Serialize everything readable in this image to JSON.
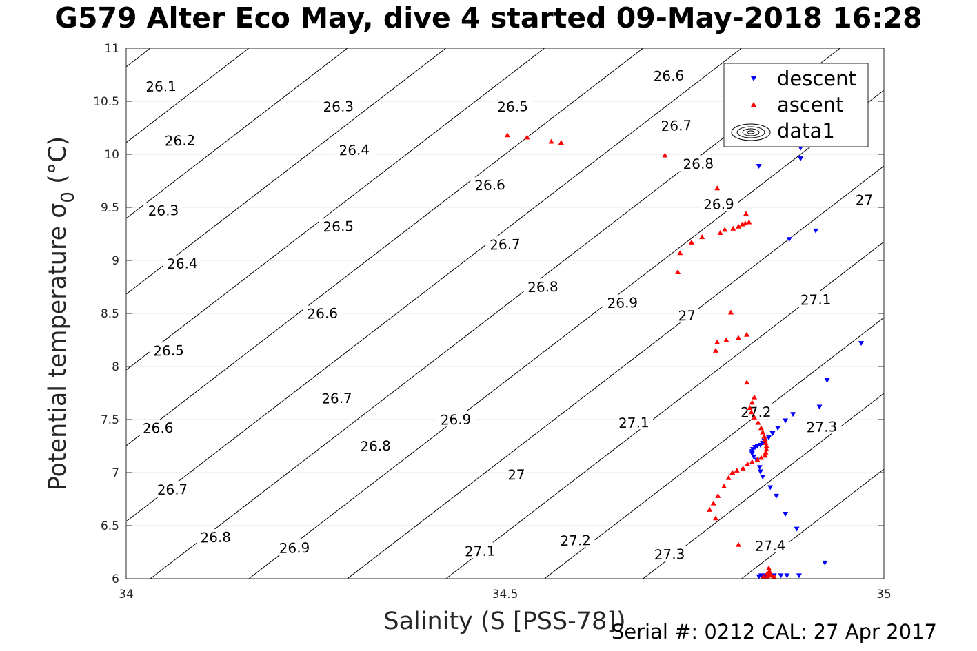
{
  "title": "G579 Alter Eco May, dive 4 started 09-May-2018 16:28",
  "footer": {
    "serial": "Serial #: 0212  CAL: 27 Apr 2017"
  },
  "chart_data": {
    "type": "scatter",
    "xlabel": "Salinity (S [PSS-78])",
    "ylabel": "Potential temperature σ 0 (°C)",
    "xlim": [
      34,
      35
    ],
    "ylim": [
      6,
      11
    ],
    "xticks": [
      34,
      34.5,
      35
    ],
    "xtick_labels": [
      "34",
      "34.5",
      "35"
    ],
    "yticks": [
      6,
      6.5,
      7,
      7.5,
      8,
      8.5,
      9,
      9.5,
      10,
      10.5,
      11
    ],
    "ytick_labels": [
      "6",
      "6.5",
      "7",
      "7.5",
      "8",
      "8.5",
      "9",
      "9.5",
      "10",
      "10.5",
      "11"
    ],
    "grid": true,
    "legend_position": "top-right",
    "contour_levels": [
      26.1,
      26.2,
      26.3,
      26.4,
      26.5,
      26.6,
      26.7,
      26.8,
      26.9,
      27,
      27.1,
      27.2,
      27.3,
      27.4
    ],
    "contour_labels": [
      {
        "text": "26.1",
        "x": 34.046,
        "y": 10.64
      },
      {
        "text": "26.2",
        "x": 34.071,
        "y": 10.13
      },
      {
        "text": "26.3",
        "x": 34.049,
        "y": 9.47
      },
      {
        "text": "26.4",
        "x": 34.074,
        "y": 8.97
      },
      {
        "text": "26.5",
        "x": 34.056,
        "y": 8.15
      },
      {
        "text": "26.6",
        "x": 34.042,
        "y": 7.42
      },
      {
        "text": "26.7",
        "x": 34.061,
        "y": 6.84
      },
      {
        "text": "26.8",
        "x": 34.118,
        "y": 6.39
      },
      {
        "text": "26.3",
        "x": 34.28,
        "y": 10.45
      },
      {
        "text": "26.4",
        "x": 34.301,
        "y": 10.04
      },
      {
        "text": "26.5",
        "x": 34.28,
        "y": 9.32
      },
      {
        "text": "26.6",
        "x": 34.259,
        "y": 8.5
      },
      {
        "text": "26.7",
        "x": 34.278,
        "y": 7.7
      },
      {
        "text": "26.8",
        "x": 34.329,
        "y": 7.25
      },
      {
        "text": "26.9",
        "x": 34.222,
        "y": 6.29
      },
      {
        "text": "26.5",
        "x": 34.51,
        "y": 10.45
      },
      {
        "text": "26.6",
        "x": 34.48,
        "y": 9.71
      },
      {
        "text": "26.7",
        "x": 34.5,
        "y": 9.15
      },
      {
        "text": "26.8",
        "x": 34.55,
        "y": 8.75
      },
      {
        "text": "26.9",
        "x": 34.435,
        "y": 7.5
      },
      {
        "text": "27",
        "x": 34.515,
        "y": 6.98
      },
      {
        "text": "27.1",
        "x": 34.467,
        "y": 6.26
      },
      {
        "text": "26.6",
        "x": 34.716,
        "y": 10.74
      },
      {
        "text": "26.7",
        "x": 34.726,
        "y": 10.27
      },
      {
        "text": "26.8",
        "x": 34.755,
        "y": 9.91
      },
      {
        "text": "26.9",
        "x": 34.782,
        "y": 9.53
      },
      {
        "text": "27",
        "x": 34.974,
        "y": 9.57
      },
      {
        "text": "26.9",
        "x": 34.655,
        "y": 8.6
      },
      {
        "text": "27",
        "x": 34.74,
        "y": 8.48
      },
      {
        "text": "27.1",
        "x": 34.67,
        "y": 7.47
      },
      {
        "text": "27.1",
        "x": 34.91,
        "y": 8.63
      },
      {
        "text": "27.2",
        "x": 34.831,
        "y": 7.57
      },
      {
        "text": "27.3",
        "x": 34.918,
        "y": 7.43
      },
      {
        "text": "27.2",
        "x": 34.593,
        "y": 6.36
      },
      {
        "text": "27.3",
        "x": 34.717,
        "y": 6.23
      },
      {
        "text": "27.4",
        "x": 34.85,
        "y": 6.31
      }
    ],
    "series": [
      {
        "name": "descent",
        "color": "#0000ff",
        "marker": "triangle-down",
        "points": [
          [
            34.835,
            9.89
          ],
          [
            34.89,
            10.06
          ],
          [
            34.89,
            9.96
          ],
          [
            34.91,
            9.28
          ],
          [
            34.875,
            9.2
          ],
          [
            34.97,
            8.22
          ],
          [
            34.925,
            7.87
          ],
          [
            34.915,
            7.62
          ],
          [
            34.88,
            7.55
          ],
          [
            34.87,
            7.49
          ],
          [
            34.86,
            7.42
          ],
          [
            34.853,
            7.37
          ],
          [
            34.848,
            7.33
          ],
          [
            34.842,
            7.3
          ],
          [
            34.84,
            7.28
          ],
          [
            34.837,
            7.26
          ],
          [
            34.833,
            7.25
          ],
          [
            34.83,
            7.24
          ],
          [
            34.827,
            7.22
          ],
          [
            34.826,
            7.2
          ],
          [
            34.826,
            7.18
          ],
          [
            34.828,
            7.15
          ],
          [
            34.832,
            7.12
          ],
          [
            34.836,
            7.05
          ],
          [
            34.837,
            7.01
          ],
          [
            34.84,
            6.96
          ],
          [
            34.85,
            6.86
          ],
          [
            34.858,
            6.78
          ],
          [
            34.87,
            6.61
          ],
          [
            34.885,
            6.47
          ],
          [
            34.922,
            6.15
          ],
          [
            34.888,
            6.03
          ],
          [
            34.872,
            6.03
          ],
          [
            34.864,
            6.03
          ],
          [
            34.855,
            6.03
          ],
          [
            34.848,
            6.03
          ],
          [
            34.843,
            6.03
          ],
          [
            34.838,
            6.03
          ],
          [
            34.835,
            6.02
          ]
        ]
      },
      {
        "name": "ascent",
        "color": "#ff0000",
        "marker": "triangle-up",
        "points": [
          [
            34.503,
            10.18
          ],
          [
            34.529,
            10.16
          ],
          [
            34.561,
            10.12
          ],
          [
            34.574,
            10.11
          ],
          [
            34.711,
            9.99
          ],
          [
            34.78,
            9.68
          ],
          [
            34.818,
            9.44
          ],
          [
            34.822,
            9.36
          ],
          [
            34.817,
            9.35
          ],
          [
            34.813,
            9.34
          ],
          [
            34.808,
            9.32
          ],
          [
            34.801,
            9.3
          ],
          [
            34.79,
            9.29
          ],
          [
            34.784,
            9.26
          ],
          [
            34.76,
            9.22
          ],
          [
            34.746,
            9.17
          ],
          [
            34.731,
            9.07
          ],
          [
            34.728,
            8.89
          ],
          [
            34.798,
            8.51
          ],
          [
            34.78,
            8.23
          ],
          [
            34.778,
            8.15
          ],
          [
            34.792,
            8.25
          ],
          [
            34.808,
            8.27
          ],
          [
            34.819,
            8.3
          ],
          [
            34.819,
            7.85
          ],
          [
            34.829,
            7.71
          ],
          [
            34.826,
            7.66
          ],
          [
            34.823,
            7.61
          ],
          [
            34.825,
            7.57
          ],
          [
            34.829,
            7.52
          ],
          [
            34.834,
            7.47
          ],
          [
            34.838,
            7.42
          ],
          [
            34.84,
            7.38
          ],
          [
            34.842,
            7.34
          ],
          [
            34.843,
            7.31
          ],
          [
            34.844,
            7.28
          ],
          [
            34.845,
            7.25
          ],
          [
            34.845,
            7.22
          ],
          [
            34.844,
            7.19
          ],
          [
            34.843,
            7.16
          ],
          [
            34.838,
            7.14
          ],
          [
            34.833,
            7.12
          ],
          [
            34.826,
            7.1
          ],
          [
            34.82,
            7.08
          ],
          [
            34.814,
            7.04
          ],
          [
            34.806,
            7.02
          ],
          [
            34.8,
            7.0
          ],
          [
            34.795,
            6.95
          ],
          [
            34.789,
            6.87
          ],
          [
            34.781,
            6.78
          ],
          [
            34.775,
            6.71
          ],
          [
            34.77,
            6.65
          ],
          [
            34.778,
            6.57
          ],
          [
            34.808,
            6.32
          ],
          [
            34.848,
            6.1
          ],
          [
            34.849,
            6.07
          ],
          [
            34.846,
            6.05
          ],
          [
            34.85,
            6.04
          ],
          [
            34.852,
            6.03
          ],
          [
            34.855,
            6.02
          ],
          [
            34.846,
            6.02
          ],
          [
            34.841,
            6.02
          ]
        ]
      },
      {
        "name": "data1",
        "color": "#000000",
        "marker": "contour"
      }
    ]
  }
}
